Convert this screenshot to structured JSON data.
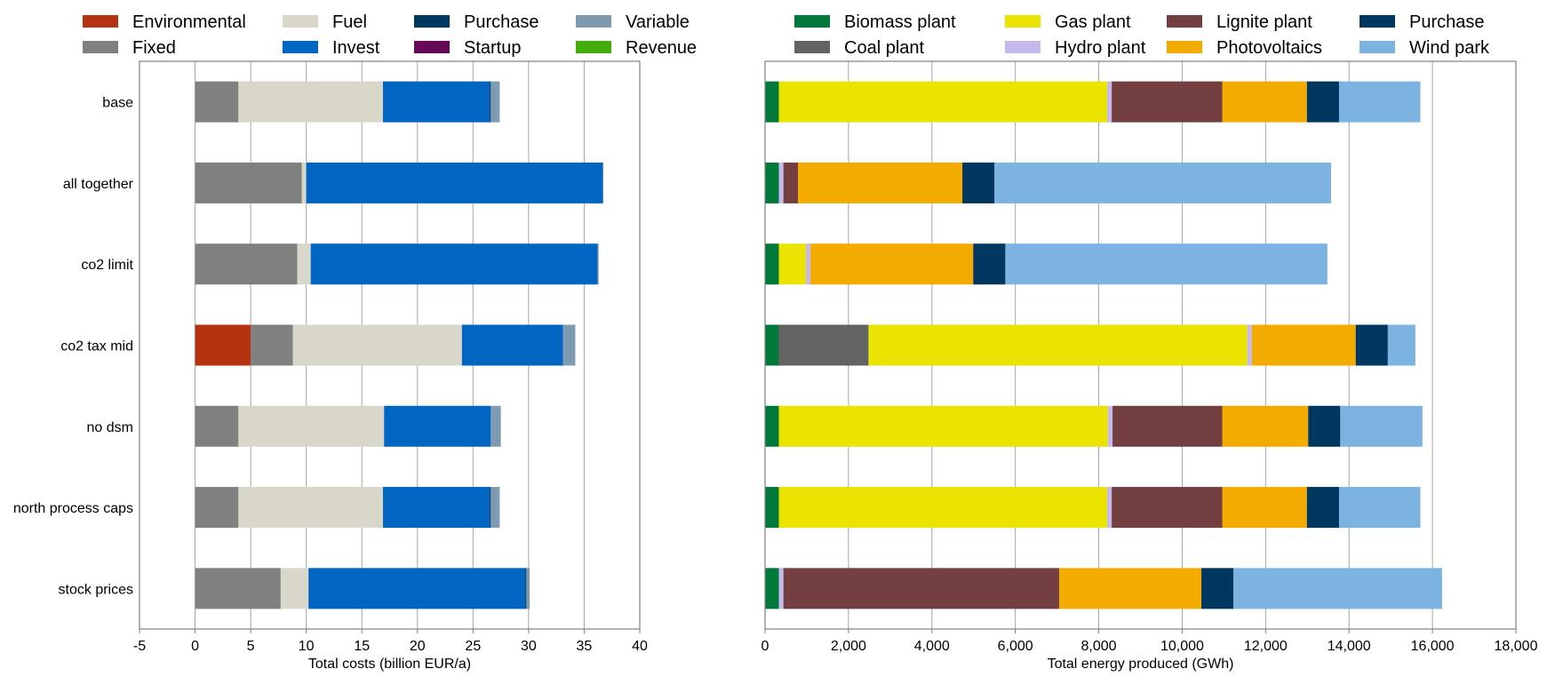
{
  "chart_data": [
    {
      "type": "bar",
      "orientation": "horizontal",
      "stacked": true,
      "title": "",
      "xlabel": "Total costs (billion EUR/a)",
      "ylabel": "",
      "xlim": [
        -5,
        40
      ],
      "xticks": [
        -5,
        0,
        5,
        10,
        15,
        20,
        25,
        30,
        35,
        40
      ],
      "grid": "vertical",
      "legend": "top",
      "categories": [
        "base",
        "all together",
        "co2 limit",
        "co2 tax mid",
        "no dsm",
        "north process caps",
        "stock prices"
      ],
      "series": [
        {
          "name": "Environmental",
          "color": "#b63312",
          "values": [
            0,
            0,
            0,
            5.0,
            0,
            0,
            0
          ]
        },
        {
          "name": "Fixed",
          "color": "#808080",
          "values": [
            3.9,
            9.6,
            9.2,
            3.8,
            3.9,
            3.9,
            7.7
          ]
        },
        {
          "name": "Fuel",
          "color": "#d9d7c9",
          "values": [
            13.0,
            0.4,
            1.2,
            15.2,
            13.1,
            13.0,
            2.5
          ]
        },
        {
          "name": "Invest",
          "color": "#0066c2",
          "values": [
            9.6,
            26.7,
            25.8,
            9.1,
            9.6,
            9.6,
            19.5
          ]
        },
        {
          "name": "Purchase",
          "color": "#003760",
          "values": [
            0.1,
            0,
            0,
            0,
            0,
            0.1,
            0.1
          ]
        },
        {
          "name": "Startup",
          "color": "#660a58",
          "values": [
            0,
            0,
            0,
            0,
            0,
            0,
            0
          ]
        },
        {
          "name": "Variable",
          "color": "#7f9bb1",
          "values": [
            0.8,
            0,
            0.1,
            1.1,
            0.9,
            0.8,
            0.3
          ]
        },
        {
          "name": "Revenue",
          "color": "#42ad0d",
          "values": [
            0,
            0,
            0,
            0,
            0,
            0,
            0
          ]
        }
      ]
    },
    {
      "type": "bar",
      "orientation": "horizontal",
      "stacked": true,
      "title": "",
      "xlabel": "Total energy produced (GWh)",
      "ylabel": "",
      "xlim": [
        0,
        18000
      ],
      "xticks": [
        0,
        2000,
        4000,
        6000,
        8000,
        10000,
        12000,
        14000,
        16000,
        18000
      ],
      "xtick_labels": [
        "0",
        "2,000",
        "4,000",
        "6,000",
        "8,000",
        "10,000",
        "12,000",
        "14,000",
        "16,000",
        "18,000"
      ],
      "grid": "vertical",
      "legend": "top",
      "categories": [
        "base",
        "all together",
        "co2 limit",
        "co2 tax mid",
        "no dsm",
        "north process caps",
        "stock prices"
      ],
      "series": [
        {
          "name": "Biomass plant",
          "color": "#00793b",
          "values": [
            330,
            330,
            330,
            330,
            330,
            330,
            330
          ]
        },
        {
          "name": "Coal plant",
          "color": "#636363",
          "values": [
            0,
            0,
            0,
            2150,
            0,
            0,
            0
          ]
        },
        {
          "name": "Gas plant",
          "color": "#ebe300",
          "values": [
            7870,
            0,
            650,
            9080,
            7890,
            7870,
            0
          ]
        },
        {
          "name": "Hydro plant",
          "color": "#c5b9ed",
          "values": [
            110,
            110,
            110,
            110,
            110,
            110,
            110
          ]
        },
        {
          "name": "Lignite plant",
          "color": "#733f40",
          "values": [
            2650,
            350,
            0,
            0,
            2630,
            2650,
            6610
          ]
        },
        {
          "name": "Photovoltaics",
          "color": "#f3ab00",
          "values": [
            2030,
            3940,
            3900,
            2490,
            2060,
            2030,
            3410
          ]
        },
        {
          "name": "Purchase",
          "color": "#003760",
          "values": [
            770,
            770,
            770,
            770,
            770,
            770,
            770
          ]
        },
        {
          "name": "Wind park",
          "color": "#7cb3e1",
          "values": [
            1950,
            8070,
            7720,
            660,
            1970,
            1950,
            5000
          ]
        }
      ]
    }
  ]
}
